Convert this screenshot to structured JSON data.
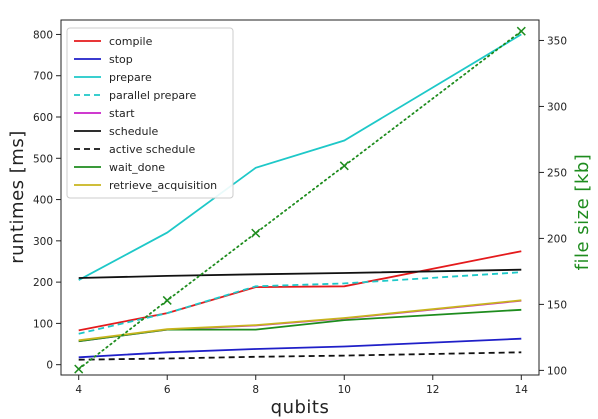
{
  "chart_data": {
    "type": "line",
    "title": "",
    "xlabel": "qubits",
    "ylabel": "runtimes [ms]",
    "y2label": "file size [kb]",
    "xlim": [
      3.6,
      14.4
    ],
    "ylim": [
      -25,
      835
    ],
    "y2lim": [
      96.5,
      365.5
    ],
    "x_ticks": [
      "4",
      "6",
      "8",
      "10",
      "12",
      "14"
    ],
    "y_ticks": [
      "0",
      "100",
      "200",
      "300",
      "400",
      "500",
      "600",
      "700",
      "800"
    ],
    "y2_ticks": [
      "100",
      "150",
      "200",
      "250",
      "300",
      "350"
    ],
    "grid": false,
    "legend_position": "top-left",
    "series": [
      {
        "name": "compile",
        "color": "#e41a1c",
        "style": "solid",
        "x": [
          4,
          6,
          8,
          10,
          14
        ],
        "values": [
          83,
          125,
          188,
          190,
          275
        ]
      },
      {
        "name": "stop",
        "color": "#1f1fc8",
        "style": "solid",
        "x": [
          4,
          6,
          8,
          10,
          14
        ],
        "values": [
          18,
          30,
          38,
          44,
          63
        ]
      },
      {
        "name": "prepare",
        "color": "#1ec8c8",
        "style": "solid",
        "x": [
          4,
          6,
          8,
          10,
          14
        ],
        "values": [
          205,
          320,
          477,
          543,
          800
        ]
      },
      {
        "name": "parallel prepare",
        "color": "#1ec8c8",
        "style": "dashed",
        "x": [
          4,
          6,
          8,
          10,
          14
        ],
        "values": [
          75,
          125,
          190,
          197,
          224
        ]
      },
      {
        "name": "start",
        "color": "#c81ec8",
        "style": "solid",
        "x": [
          4,
          6,
          8,
          10,
          14
        ],
        "values": [
          57,
          85,
          95,
          112,
          155
        ]
      },
      {
        "name": "schedule",
        "color": "#111111",
        "style": "solid",
        "x": [
          4,
          6,
          8,
          10,
          14
        ],
        "values": [
          210,
          215,
          219,
          222,
          230
        ]
      },
      {
        "name": "active schedule",
        "color": "#111111",
        "style": "dashed",
        "x": [
          4,
          6,
          8,
          10,
          14
        ],
        "values": [
          12,
          15,
          19,
          22,
          30
        ]
      },
      {
        "name": "wait_done",
        "color": "#1e8c1e",
        "style": "solid",
        "x": [
          4,
          6,
          8,
          10,
          14
        ],
        "values": [
          57,
          85,
          85,
          108,
          133
        ]
      },
      {
        "name": "retrieve_acquisition",
        "color": "#c8b41e",
        "style": "solid",
        "x": [
          4,
          6,
          8,
          10,
          14
        ],
        "values": [
          59,
          86,
          96,
          113,
          156
        ]
      }
    ],
    "secondary_series": {
      "color": "#1e8c1e",
      "style": "dotted",
      "marker": "x",
      "x": [
        4,
        6,
        8,
        10,
        14
      ],
      "values": [
        101,
        153,
        204,
        255,
        357
      ]
    }
  }
}
